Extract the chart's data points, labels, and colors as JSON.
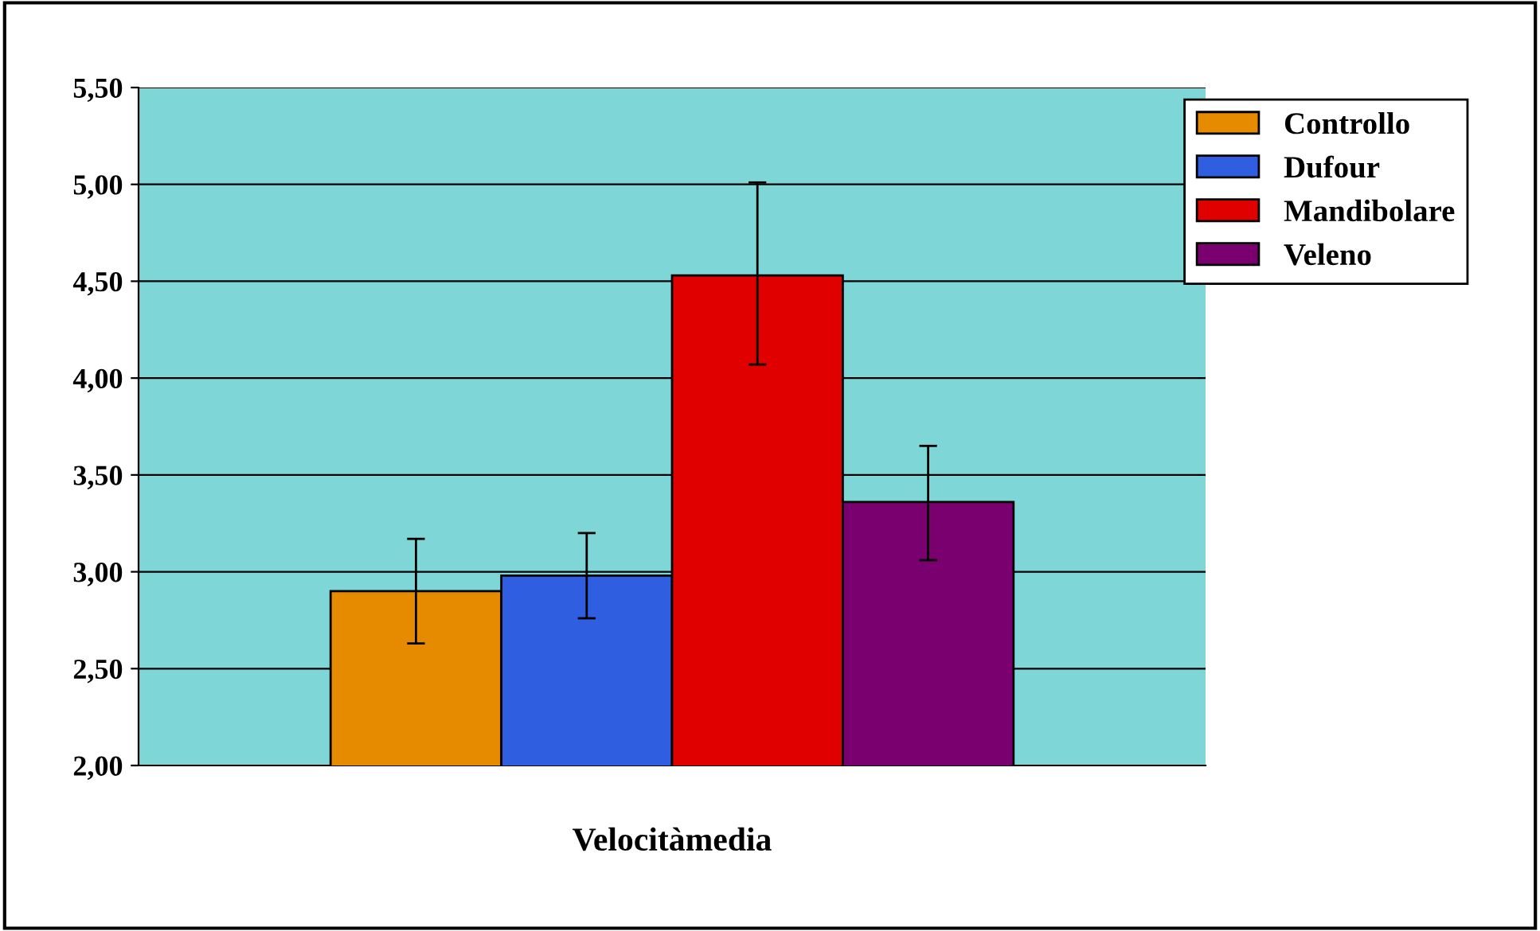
{
  "chart_data": {
    "type": "bar",
    "categories": [
      "Velocitàmedia"
    ],
    "series": [
      {
        "name": "Controllo",
        "color": "#e68a00",
        "values": [
          2.9
        ],
        "errors": [
          [
            2.63,
            3.17
          ]
        ]
      },
      {
        "name": "Dufour",
        "color": "#2f5fe0",
        "values": [
          2.98
        ],
        "errors": [
          [
            2.76,
            3.2
          ]
        ]
      },
      {
        "name": "Mandibolare",
        "color": "#e00000",
        "values": [
          4.53
        ],
        "errors": [
          [
            4.07,
            5.01
          ]
        ]
      },
      {
        "name": "Veleno",
        "color": "#7a0070",
        "values": [
          3.36
        ],
        "errors": [
          [
            3.06,
            3.65
          ]
        ]
      }
    ],
    "ylim": [
      2.0,
      5.5
    ],
    "yticks": [
      {
        "value": 2.0,
        "label": "2,00"
      },
      {
        "value": 2.5,
        "label": "2,50"
      },
      {
        "value": 3.0,
        "label": "3,00"
      },
      {
        "value": 3.5,
        "label": "3,50"
      },
      {
        "value": 4.0,
        "label": "4,00"
      },
      {
        "value": 4.5,
        "label": "4,50"
      },
      {
        "value": 5.0,
        "label": "5,00"
      },
      {
        "value": 5.5,
        "label": "5,50"
      }
    ],
    "grid": "y",
    "legend": "top right"
  }
}
